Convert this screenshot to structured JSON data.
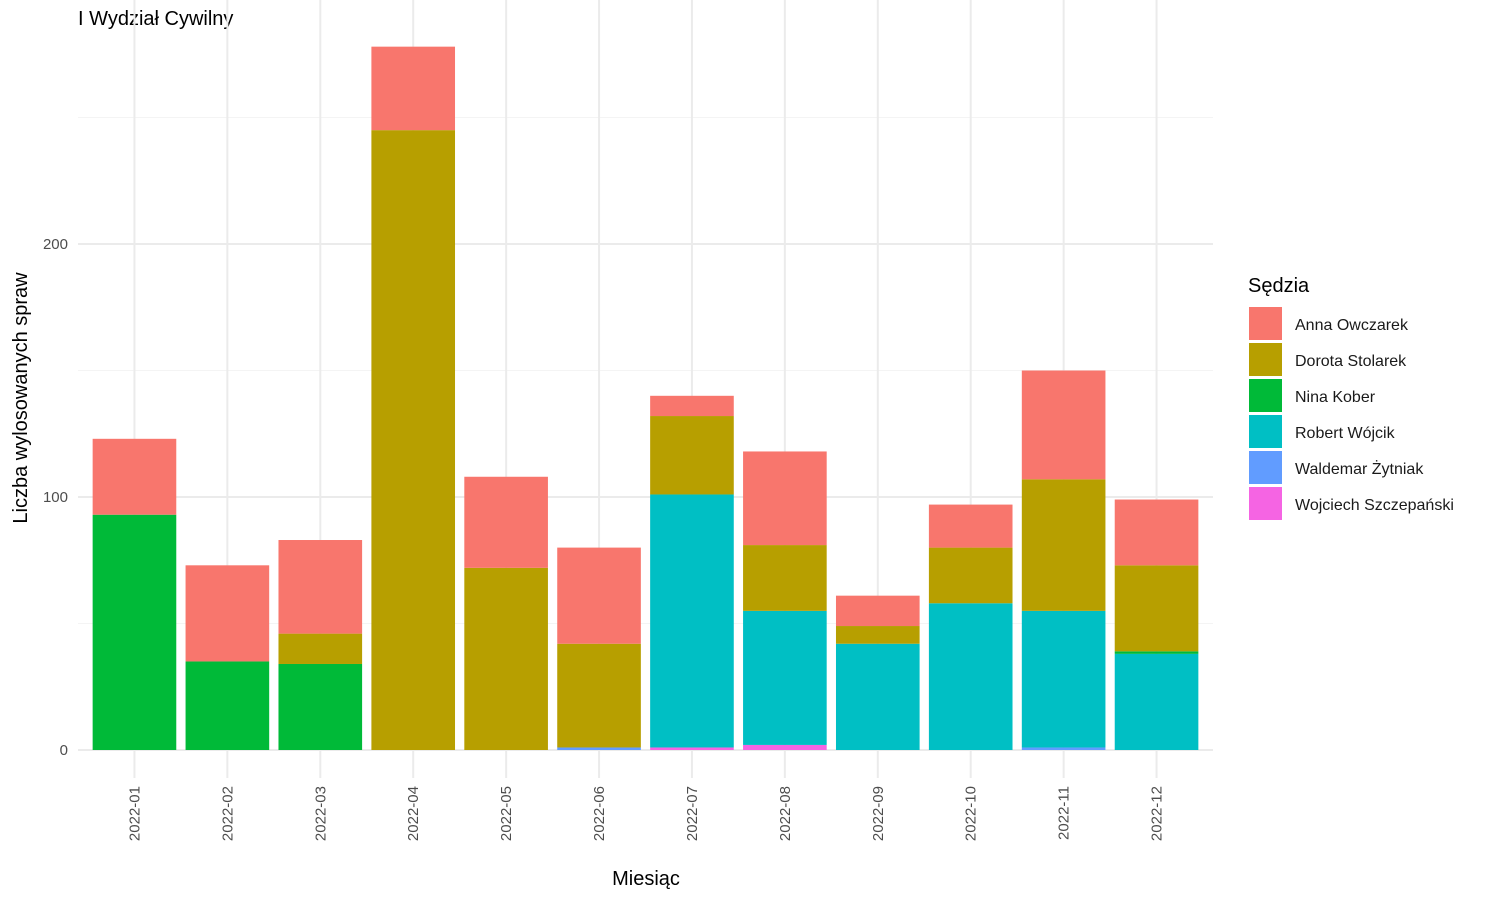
{
  "chart_data": {
    "type": "bar",
    "stacked": true,
    "title": "I Wydział Cywilny",
    "xlabel": "Miesiąc",
    "ylabel": "Liczba wylosowanych spraw",
    "ylim": [
      -11,
      290
    ],
    "yticks": [
      0,
      100,
      200
    ],
    "grid": true,
    "legend": {
      "title": "Sędzia",
      "position": "right"
    },
    "categories": [
      "2022-01",
      "2022-02",
      "2022-03",
      "2022-04",
      "2022-05",
      "2022-06",
      "2022-07",
      "2022-08",
      "2022-09",
      "2022-10",
      "2022-11",
      "2022-12"
    ],
    "series": [
      {
        "name": "Wojciech Szczepański",
        "color": "#F564E3",
        "values": [
          0,
          0,
          0,
          0,
          0,
          0,
          1,
          2,
          0,
          0,
          0,
          0
        ]
      },
      {
        "name": "Waldemar Żytniak",
        "color": "#619CFF",
        "values": [
          0,
          0,
          0,
          0,
          0,
          1,
          0,
          0,
          0,
          0,
          1,
          0
        ]
      },
      {
        "name": "Robert Wójcik",
        "color": "#00BFC4",
        "values": [
          0,
          0,
          0,
          0,
          0,
          0,
          100,
          53,
          42,
          58,
          54,
          38
        ]
      },
      {
        "name": "Nina Kober",
        "color": "#00BA38",
        "values": [
          93,
          35,
          34,
          0,
          0,
          0,
          0,
          0,
          0,
          0,
          0,
          1
        ]
      },
      {
        "name": "Dorota Stolarek",
        "color": "#B79F00",
        "values": [
          0,
          0,
          12,
          245,
          72,
          41,
          31,
          26,
          7,
          22,
          52,
          34
        ]
      },
      {
        "name": "Anna Owczarek",
        "color": "#F8766D",
        "values": [
          30,
          38,
          37,
          33,
          36,
          38,
          8,
          37,
          12,
          17,
          43,
          26
        ]
      }
    ],
    "legend_order": [
      "Anna Owczarek",
      "Dorota Stolarek",
      "Nina Kober",
      "Robert Wójcik",
      "Waldemar Żytniak",
      "Wojciech Szczepański"
    ]
  }
}
